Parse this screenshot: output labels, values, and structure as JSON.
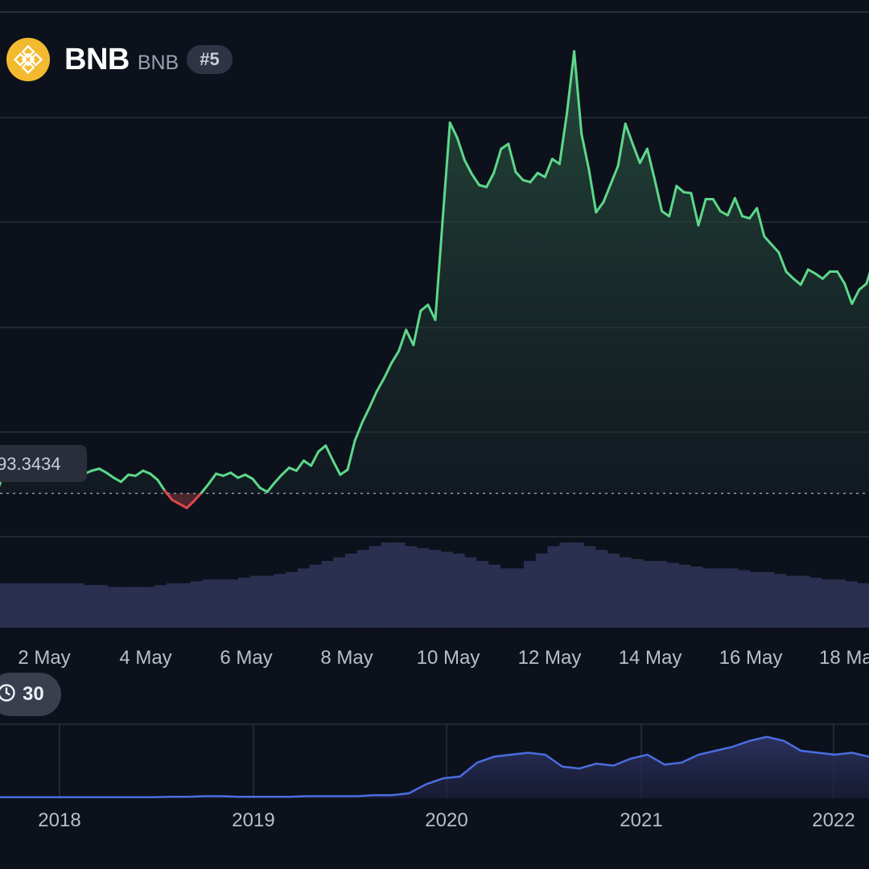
{
  "header": {
    "coin_name": "BNB",
    "coin_symbol": "BNB",
    "rank": "#5",
    "logo_icon": "bnb-logo-icon",
    "logo_color": "#f3ba2f"
  },
  "range_control": {
    "icon": "clock-icon",
    "label": "30"
  },
  "colors": {
    "up": "#5dd88a",
    "down": "#e0474c",
    "volume": "#2b3050",
    "navigator": "#4a6ee0",
    "grid": "#2a2f3d"
  },
  "chart_data": [
    {
      "type": "area",
      "title": "",
      "reference_label": "93.3434",
      "x_ticks": [
        "2 May",
        "4 May",
        "6 May",
        "8 May",
        "10 May",
        "12 May",
        "14 May",
        "16 May",
        "18 Ma"
      ],
      "series": [
        {
          "values": [
            93.3434,
            95.6,
            96.1,
            95.8,
            96.3,
            96.0,
            95.5,
            96.1,
            95.7,
            95.2,
            95.4,
            95.9,
            95.3,
            95.6,
            95.8,
            95.4,
            94.9,
            94.5,
            95.2,
            95.1,
            95.6,
            95.3,
            94.7,
            93.6,
            92.7,
            92.3,
            91.9,
            92.6,
            93.4,
            94.3,
            95.3,
            95.1,
            95.4,
            94.9,
            95.2,
            94.8,
            93.9,
            93.5,
            94.4,
            95.2,
            95.9,
            95.6,
            96.6,
            96.1,
            97.5,
            98.1,
            96.6,
            95.2,
            95.7,
            98.6,
            100.4,
            101.9,
            103.5,
            104.8,
            106.3,
            107.5,
            109.6,
            108.1,
            111.5,
            112.1,
            110.6,
            120.5,
            130.2,
            128.7,
            126.5,
            125.1,
            124.0,
            123.8,
            125.2,
            127.6,
            128.1,
            125.3,
            124.5,
            124.3,
            125.2,
            124.8,
            126.6,
            126.1,
            131.1,
            137.3,
            129.1,
            125.6,
            121.3,
            122.3,
            124.1,
            125.9,
            130.1,
            128.1,
            126.2,
            127.6,
            124.6,
            121.4,
            120.9,
            123.9,
            123.3,
            123.2,
            120.0,
            122.6,
            122.6,
            121.4,
            121.0,
            122.7,
            120.9,
            120.7,
            121.7,
            118.9,
            118.1,
            117.3,
            115.4,
            114.7,
            114.1,
            115.6,
            115.2,
            114.7,
            115.4,
            115.4,
            114.2,
            112.2,
            113.6,
            114.2,
            116.6
          ]
        }
      ],
      "volume": [
        12,
        12,
        12,
        12,
        12,
        12,
        12,
        11.5,
        11.5,
        11,
        11,
        11,
        11,
        11.5,
        12,
        12,
        12.5,
        13,
        13,
        13,
        13.5,
        14,
        14,
        14.5,
        15,
        16,
        17,
        18,
        19,
        20,
        21,
        22,
        23,
        23,
        22,
        21.5,
        21,
        20.5,
        20,
        19,
        18,
        17,
        16,
        16,
        18,
        20,
        22,
        23,
        23,
        22,
        21,
        20,
        19,
        18.5,
        18,
        18,
        17.5,
        17,
        16.5,
        16,
        16,
        16,
        15.5,
        15,
        15,
        14.5,
        14,
        14,
        13.5,
        13,
        13,
        12.5,
        12
      ]
    },
    {
      "type": "area",
      "x_ticks": [
        "2018",
        "2019",
        "2020",
        "2021",
        "2022"
      ],
      "series": [
        {
          "values": [
            1,
            1,
            1,
            1,
            1,
            1,
            1,
            1,
            1,
            1,
            1.5,
            1.5,
            2,
            2,
            1.5,
            1.5,
            1.5,
            1.5,
            2,
            2,
            2,
            2,
            3,
            3,
            5,
            14,
            20,
            22,
            36,
            42,
            44,
            46,
            44,
            32,
            30,
            35,
            33,
            40,
            44,
            34,
            36,
            44,
            48,
            52,
            58,
            62,
            58,
            48,
            46,
            44,
            46,
            42
          ]
        }
      ]
    }
  ]
}
